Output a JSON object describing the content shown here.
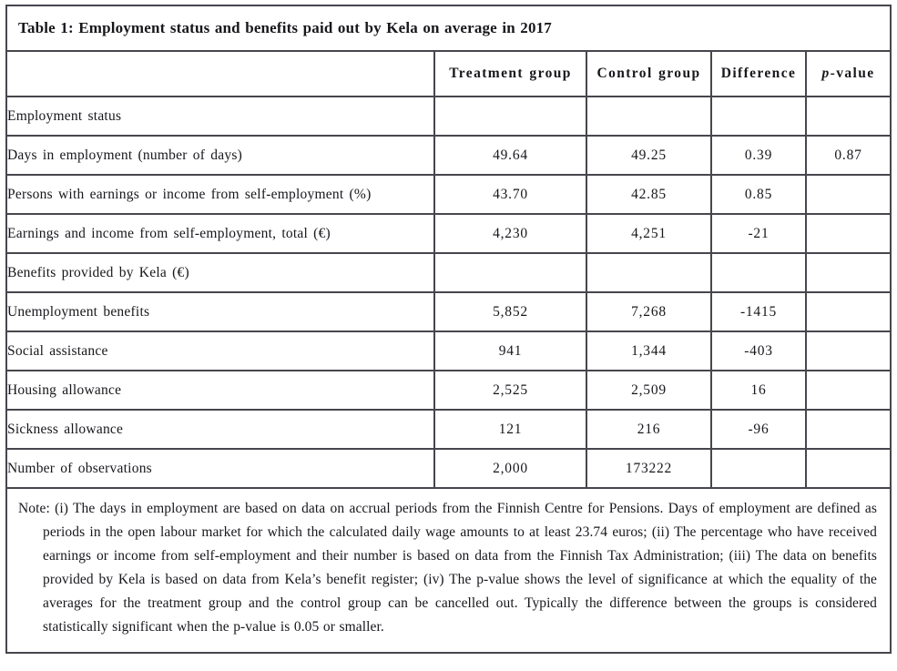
{
  "table": {
    "title": "Table 1: Employment status and benefits paid out by Kela on average in 2017",
    "columns": [
      "",
      "Treatment group",
      "Control group",
      "Difference",
      "p-value"
    ],
    "rows": [
      {
        "label": "Employment status",
        "treatment": "",
        "control": "",
        "difference": "",
        "p_value": ""
      },
      {
        "label": "Days in employment (number of days)",
        "treatment": "49.64",
        "control": "49.25",
        "difference": "0.39",
        "p_value": "0.87"
      },
      {
        "label": "Persons with earnings or income from self-employment (%)",
        "treatment": "43.70",
        "control": "42.85",
        "difference": "0.85",
        "p_value": ""
      },
      {
        "label": "Earnings and income from self-employment, total (€)",
        "treatment": "4,230",
        "control": "4,251",
        "difference": "-21",
        "p_value": ""
      },
      {
        "label": "Benefits provided by Kela (€)",
        "treatment": "",
        "control": "",
        "difference": "",
        "p_value": ""
      },
      {
        "label": "Unemployment benefits",
        "treatment": "5,852",
        "control": "7,268",
        "difference": "-1415",
        "p_value": ""
      },
      {
        "label": "Social assistance",
        "treatment": "941",
        "control": "1,344",
        "difference": "-403",
        "p_value": ""
      },
      {
        "label": "Housing allowance",
        "treatment": "2,525",
        "control": "2,509",
        "difference": "16",
        "p_value": ""
      },
      {
        "label": "Sickness allowance",
        "treatment": "121",
        "control": "216",
        "difference": "-96",
        "p_value": ""
      },
      {
        "label": "Number of observations",
        "treatment": "2,000",
        "control": "173222",
        "difference": "",
        "p_value": ""
      }
    ],
    "note": "Note: (i) The days in employment are based on data on accrual periods from the Finnish Centre for Pensions. Days of employment are defined as periods in the open labour market for which the calculated daily wage amounts to at least 23.74 euros; (ii) The percentage who have received earnings or income from self-employment and their number is based on data from the Finnish Tax Administration; (iii) The data on benefits provided by Kela is based on data from Kela’s benefit register; (iv) The p-value shows the level of significance at which the equality of the averages for the treatment group and the control group can be cancelled out. Typically the difference between the groups is considered statistically significant when the p-value is 0.05 or smaller.",
    "border_color": "#46464e",
    "text_color": "#17171c"
  }
}
